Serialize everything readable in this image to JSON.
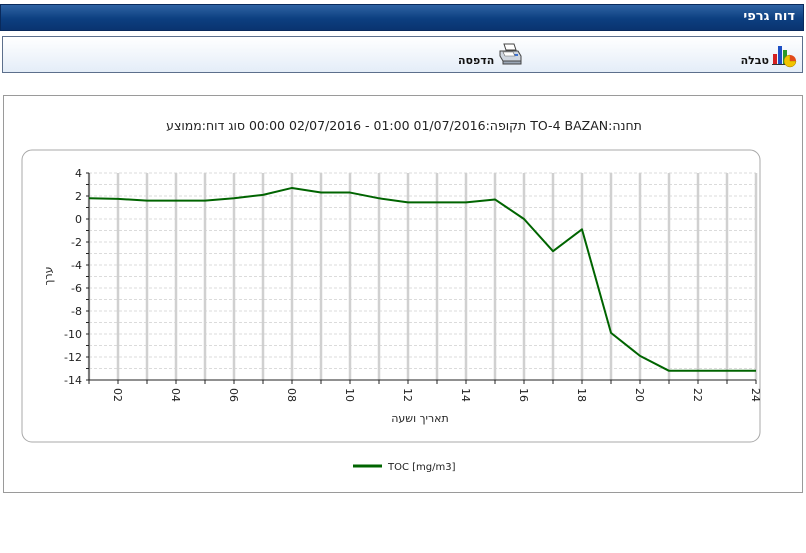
{
  "header": {
    "title": "דוח גרפי"
  },
  "toolbar": {
    "table_label": "טבלה",
    "table_icon": "bar-chart-table-icon",
    "print_label": "הדפסה",
    "print_icon": "printer-icon"
  },
  "chart_data": {
    "type": "line",
    "title": "תקופה:01/07/2016 01:00 - 02/07/2016 00:00 סוג דוח:ממוצע TO-4 BAZAN:תחנה",
    "xlabel": "תאריך ושעה",
    "ylabel": "ערך",
    "x": [
      1,
      2,
      3,
      4,
      5,
      6,
      7,
      8,
      9,
      10,
      11,
      12,
      13,
      14,
      15,
      16,
      17,
      18,
      19,
      20,
      21,
      22,
      23,
      24
    ],
    "series": [
      {
        "name": "TOC [mg/m3]",
        "color": "#006400",
        "values": [
          1.8,
          1.75,
          1.6,
          1.6,
          1.6,
          1.8,
          2.1,
          2.7,
          2.3,
          2.3,
          1.8,
          1.45,
          1.45,
          1.45,
          1.7,
          0.0,
          -2.8,
          -0.9,
          -9.9,
          -11.9,
          -13.2,
          -13.2,
          -13.2,
          -13.2
        ]
      }
    ],
    "xlim": [
      1,
      24
    ],
    "ylim": [
      -14,
      4
    ],
    "x_tick_labels": [
      "02",
      "04",
      "06",
      "08",
      "10",
      "12",
      "14",
      "16",
      "18",
      "20",
      "22",
      "24"
    ],
    "x_tick_values": [
      2,
      4,
      6,
      8,
      10,
      12,
      14,
      16,
      18,
      20,
      22,
      24
    ],
    "y_tick_labels": [
      "4",
      "2",
      "0",
      "-2",
      "-4",
      "-6",
      "-8",
      "-10",
      "-12",
      "-14"
    ],
    "y_tick_values": [
      4,
      2,
      0,
      -2,
      -4,
      -6,
      -8,
      -10,
      -12,
      -14
    ],
    "grid": true,
    "legend": "bottom-center"
  }
}
